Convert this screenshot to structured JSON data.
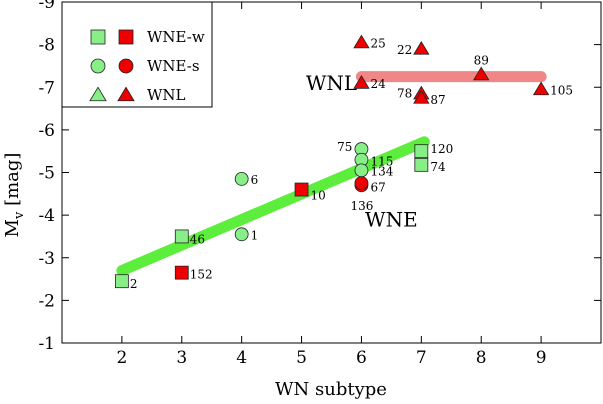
{
  "chart_data": {
    "type": "scatter",
    "xlabel": "WN subtype",
    "ylabel": "M_v [mag]",
    "xlim": [
      1,
      10
    ],
    "ylim": [
      -1,
      -9
    ],
    "x_ticks": [
      2,
      3,
      4,
      5,
      6,
      7,
      8,
      9
    ],
    "x_tick_labels": [
      "2",
      "3",
      "4",
      "5",
      "6",
      "7",
      "8",
      "9"
    ],
    "y_ticks": [
      -1,
      -2,
      -3,
      -4,
      -5,
      -6,
      -7,
      -8,
      -9
    ],
    "y_tick_labels": [
      "-1",
      "-2",
      "-3",
      "-4",
      "-5",
      "-6",
      "-7",
      "-8",
      "-9"
    ],
    "grid": false,
    "legend_position": "top-left",
    "legend": [
      {
        "label": "WNE-w",
        "marker": "square"
      },
      {
        "label": "WNE-s",
        "marker": "circle"
      },
      {
        "label": "WNL",
        "marker": "triangle"
      }
    ],
    "region_labels": [
      {
        "text": "WNL",
        "x": 5.5,
        "y": -7.1
      },
      {
        "text": "WNE",
        "x": 6.5,
        "y": -3.9
      }
    ],
    "trend_lines": [
      {
        "class": "WNE",
        "color": "#55ee33",
        "x": [
          2.0,
          7.05
        ],
        "y": [
          -2.7,
          -5.72
        ]
      },
      {
        "class": "WNL",
        "color": "#f08080",
        "x": [
          6.0,
          9.0
        ],
        "y": [
          -7.25,
          -7.25
        ]
      }
    ],
    "series": [
      {
        "name": "WNE-w",
        "marker": "square",
        "points": [
          {
            "label": "2",
            "x": 2,
            "y": -2.45,
            "fill": "#88ee88"
          },
          {
            "label": "46",
            "x": 3,
            "y": -3.5,
            "fill": "#88ee88"
          },
          {
            "label": "152",
            "x": 3,
            "y": -2.65,
            "fill": "#ee0000"
          },
          {
            "label": "10",
            "x": 5,
            "y": -4.6,
            "fill": "#ee0000"
          },
          {
            "label": "120",
            "x": 7,
            "y": -5.5,
            "fill": "#88ee88"
          },
          {
            "label": "74",
            "x": 7,
            "y": -5.18,
            "fill": "#88ee88"
          }
        ]
      },
      {
        "name": "WNE-s",
        "marker": "circle",
        "points": [
          {
            "label": "6",
            "x": 4,
            "y": -4.85,
            "fill": "#88ee88"
          },
          {
            "label": "1",
            "x": 4,
            "y": -3.55,
            "fill": "#88ee88"
          },
          {
            "label": "75",
            "x": 6,
            "y": -5.55,
            "fill": "#88ee88"
          },
          {
            "label": "115",
            "x": 6,
            "y": -5.3,
            "fill": "#88ee88"
          },
          {
            "label": "134",
            "x": 6,
            "y": -5.05,
            "fill": "#88ee88"
          },
          {
            "label": "67",
            "x": 6,
            "y": -4.7,
            "fill": "#ee0000"
          },
          {
            "label": "136",
            "x": 6,
            "y": -4.75,
            "fill": "#ee0000"
          }
        ]
      },
      {
        "name": "WNL",
        "marker": "triangle",
        "points": [
          {
            "label": "25",
            "x": 6,
            "y": -8.05,
            "fill": "#ee0000"
          },
          {
            "label": "24",
            "x": 6,
            "y": -7.1,
            "fill": "#ee0000"
          },
          {
            "label": "22",
            "x": 7,
            "y": -7.9,
            "fill": "#ee0000"
          },
          {
            "label": "78",
            "x": 7,
            "y": -6.85,
            "fill": "#ee0000"
          },
          {
            "label": "87",
            "x": 7,
            "y": -6.75,
            "fill": "#ee0000"
          },
          {
            "label": "89",
            "x": 8,
            "y": -7.3,
            "fill": "#ee0000"
          },
          {
            "label": "105",
            "x": 9,
            "y": -6.95,
            "fill": "#ee0000"
          }
        ]
      }
    ]
  }
}
